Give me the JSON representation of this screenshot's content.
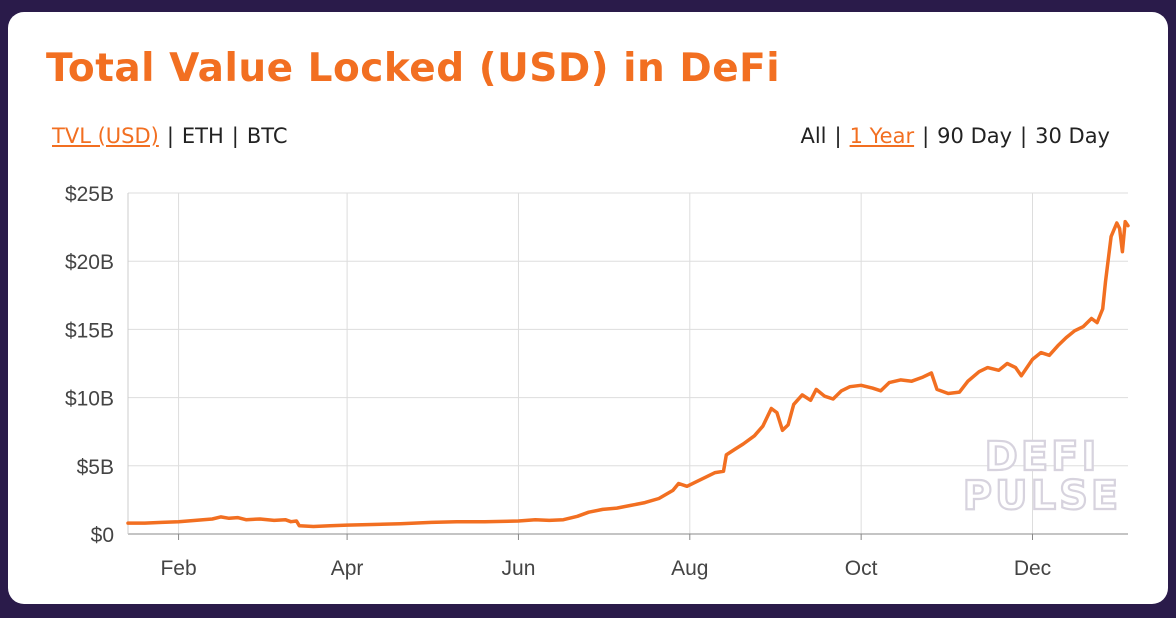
{
  "title": "Total Value Locked (USD) in DeFi",
  "metric_toggle": [
    {
      "label": "TVL (USD)",
      "active": true
    },
    {
      "label": "ETH",
      "active": false
    },
    {
      "label": "BTC",
      "active": false
    }
  ],
  "range_toggle": [
    {
      "label": "All",
      "active": false
    },
    {
      "label": "1 Year",
      "active": true
    },
    {
      "label": "90 Day",
      "active": false
    },
    {
      "label": "30 Day",
      "active": false
    }
  ],
  "separator": "|",
  "watermark": {
    "line1": "DEFI",
    "line2": "PULSE"
  },
  "colors": {
    "accent": "#f26f21",
    "background": "#2a1b4a",
    "grid": "#dddddd"
  },
  "chart_data": {
    "type": "line",
    "title": "Total Value Locked (USD) in DeFi",
    "xlabel": "",
    "ylabel": "",
    "ylim": [
      0,
      25
    ],
    "y_unit": "billion USD",
    "yticks": [
      {
        "value": 0,
        "label": "$0"
      },
      {
        "value": 5,
        "label": "$5B"
      },
      {
        "value": 10,
        "label": "$10B"
      },
      {
        "value": 15,
        "label": "$15B"
      },
      {
        "value": 20,
        "label": "$20B"
      },
      {
        "value": 25,
        "label": "$25B"
      }
    ],
    "xlim": [
      "2020-01-14",
      "2021-01-04"
    ],
    "xticks": [
      {
        "value": "2020-02-01",
        "label": "Feb"
      },
      {
        "value": "2020-04-01",
        "label": "Apr"
      },
      {
        "value": "2020-06-01",
        "label": "Jun"
      },
      {
        "value": "2020-08-01",
        "label": "Aug"
      },
      {
        "value": "2020-10-01",
        "label": "Oct"
      },
      {
        "value": "2020-12-01",
        "label": "Dec"
      }
    ],
    "grid": true,
    "series": [
      {
        "color": "#f26f21",
        "points": [
          [
            "2020-01-14",
            0.8
          ],
          [
            "2020-01-20",
            0.8
          ],
          [
            "2020-01-26",
            0.85
          ],
          [
            "2020-02-01",
            0.9
          ],
          [
            "2020-02-07",
            1.0
          ],
          [
            "2020-02-13",
            1.1
          ],
          [
            "2020-02-16",
            1.25
          ],
          [
            "2020-02-19",
            1.15
          ],
          [
            "2020-02-22",
            1.2
          ],
          [
            "2020-02-25",
            1.05
          ],
          [
            "2020-03-01",
            1.1
          ],
          [
            "2020-03-06",
            1.0
          ],
          [
            "2020-03-10",
            1.05
          ],
          [
            "2020-03-12",
            0.9
          ],
          [
            "2020-03-14",
            0.95
          ],
          [
            "2020-03-15",
            0.6
          ],
          [
            "2020-03-20",
            0.55
          ],
          [
            "2020-03-26",
            0.6
          ],
          [
            "2020-04-01",
            0.65
          ],
          [
            "2020-04-10",
            0.7
          ],
          [
            "2020-04-20",
            0.75
          ],
          [
            "2020-05-01",
            0.85
          ],
          [
            "2020-05-10",
            0.9
          ],
          [
            "2020-05-20",
            0.9
          ],
          [
            "2020-06-01",
            0.95
          ],
          [
            "2020-06-07",
            1.05
          ],
          [
            "2020-06-12",
            1.0
          ],
          [
            "2020-06-17",
            1.05
          ],
          [
            "2020-06-22",
            1.3
          ],
          [
            "2020-06-26",
            1.6
          ],
          [
            "2020-07-01",
            1.8
          ],
          [
            "2020-07-06",
            1.9
          ],
          [
            "2020-07-11",
            2.1
          ],
          [
            "2020-07-16",
            2.3
          ],
          [
            "2020-07-21",
            2.6
          ],
          [
            "2020-07-26",
            3.2
          ],
          [
            "2020-07-28",
            3.7
          ],
          [
            "2020-07-31",
            3.5
          ],
          [
            "2020-08-03",
            3.8
          ],
          [
            "2020-08-07",
            4.2
          ],
          [
            "2020-08-10",
            4.5
          ],
          [
            "2020-08-13",
            4.6
          ],
          [
            "2020-08-14",
            5.8
          ],
          [
            "2020-08-17",
            6.2
          ],
          [
            "2020-08-20",
            6.6
          ],
          [
            "2020-08-24",
            7.2
          ],
          [
            "2020-08-27",
            7.9
          ],
          [
            "2020-08-30",
            9.2
          ],
          [
            "2020-09-01",
            8.9
          ],
          [
            "2020-09-03",
            7.6
          ],
          [
            "2020-09-05",
            8.0
          ],
          [
            "2020-09-07",
            9.5
          ],
          [
            "2020-09-10",
            10.2
          ],
          [
            "2020-09-13",
            9.8
          ],
          [
            "2020-09-15",
            10.6
          ],
          [
            "2020-09-18",
            10.1
          ],
          [
            "2020-09-21",
            9.9
          ],
          [
            "2020-09-24",
            10.5
          ],
          [
            "2020-09-27",
            10.8
          ],
          [
            "2020-10-01",
            10.9
          ],
          [
            "2020-10-05",
            10.7
          ],
          [
            "2020-10-08",
            10.5
          ],
          [
            "2020-10-11",
            11.1
          ],
          [
            "2020-10-15",
            11.3
          ],
          [
            "2020-10-19",
            11.2
          ],
          [
            "2020-10-23",
            11.5
          ],
          [
            "2020-10-26",
            11.8
          ],
          [
            "2020-10-28",
            10.6
          ],
          [
            "2020-11-01",
            10.3
          ],
          [
            "2020-11-05",
            10.4
          ],
          [
            "2020-11-08",
            11.2
          ],
          [
            "2020-11-12",
            11.9
          ],
          [
            "2020-11-15",
            12.2
          ],
          [
            "2020-11-19",
            12.0
          ],
          [
            "2020-11-22",
            12.5
          ],
          [
            "2020-11-25",
            12.2
          ],
          [
            "2020-11-27",
            11.6
          ],
          [
            "2020-12-01",
            12.8
          ],
          [
            "2020-12-04",
            13.3
          ],
          [
            "2020-12-07",
            13.1
          ],
          [
            "2020-12-10",
            13.8
          ],
          [
            "2020-12-13",
            14.4
          ],
          [
            "2020-12-16",
            14.9
          ],
          [
            "2020-12-19",
            15.2
          ],
          [
            "2020-12-22",
            15.8
          ],
          [
            "2020-12-24",
            15.5
          ],
          [
            "2020-12-26",
            16.5
          ],
          [
            "2020-12-27",
            18.5
          ],
          [
            "2020-12-29",
            21.8
          ],
          [
            "2020-12-31",
            22.8
          ],
          [
            "2021-01-01",
            22.4
          ],
          [
            "2021-01-02",
            20.7
          ],
          [
            "2021-01-03",
            22.9
          ],
          [
            "2021-01-04",
            22.6
          ]
        ]
      }
    ]
  }
}
